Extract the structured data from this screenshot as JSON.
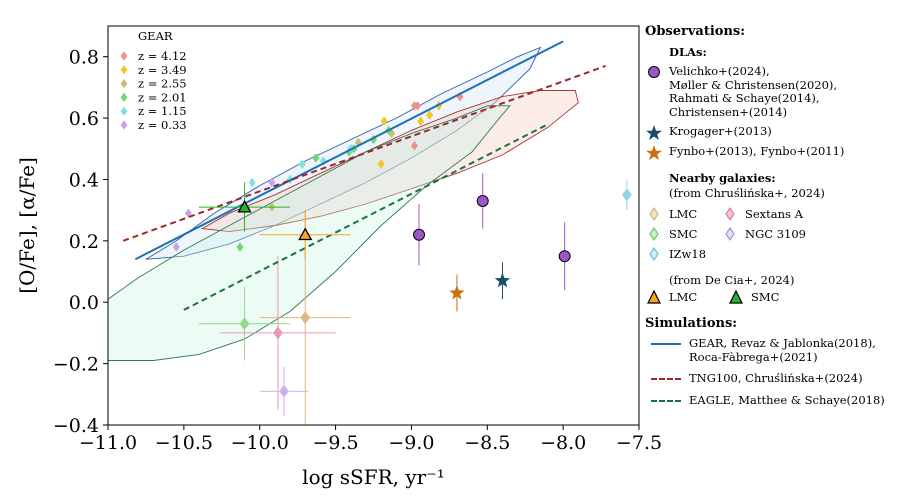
{
  "chart_data": {
    "type": "scatter",
    "xlabel": "log sSFR, yr⁻¹",
    "ylabel": "[O/Fe], [α/Fe]",
    "xlim": [
      -11.0,
      -7.5
    ],
    "ylim": [
      -0.4,
      0.9
    ],
    "xticks": [
      "−11.0",
      "−10.5",
      "−10.0",
      "−9.5",
      "−9.0",
      "−8.5",
      "−8.0",
      "−7.5"
    ],
    "xtick_values": [
      -11.0,
      -10.5,
      -10.0,
      -9.5,
      -9.0,
      -8.5,
      -8.0,
      -7.5
    ],
    "yticks": [
      "−0.4",
      "−0.2",
      "0.0",
      "0.2",
      "0.4",
      "0.6",
      "0.8"
    ],
    "ytick_values": [
      -0.4,
      -0.2,
      0.0,
      0.2,
      0.4,
      0.6,
      0.8
    ],
    "grid": false,
    "gear_legend": {
      "title": "GEAR",
      "entries": [
        {
          "label": "z = 4.12",
          "color": "#f08f8f"
        },
        {
          "label": "z = 3.49",
          "color": "#f2c52c"
        },
        {
          "label": "z = 2.55",
          "color": "#c8c070"
        },
        {
          "label": "z = 2.01",
          "color": "#6fd876"
        },
        {
          "label": "z = 1.15",
          "color": "#7fe0dc"
        },
        {
          "label": "z = 0.33",
          "color": "#c4a2ee"
        }
      ]
    },
    "gear_points": [
      {
        "z": "z = 4.12",
        "x": -8.98,
        "y": 0.64
      },
      {
        "z": "z = 4.12",
        "x": -8.96,
        "y": 0.64
      },
      {
        "z": "z = 4.12",
        "x": -8.68,
        "y": 0.67
      },
      {
        "z": "z = 4.12",
        "x": -8.98,
        "y": 0.51
      },
      {
        "z": "z = 3.49",
        "x": -8.82,
        "y": 0.64
      },
      {
        "z": "z = 3.49",
        "x": -8.88,
        "y": 0.61
      },
      {
        "z": "z = 3.49",
        "x": -9.18,
        "y": 0.59
      },
      {
        "z": "z = 3.49",
        "x": -8.94,
        "y": 0.59
      },
      {
        "z": "z = 3.49",
        "x": -9.2,
        "y": 0.45
      },
      {
        "z": "z = 2.55",
        "x": -9.35,
        "y": 0.52
      },
      {
        "z": "z = 2.55",
        "x": -9.13,
        "y": 0.55
      },
      {
        "z": "z = 2.55",
        "x": -9.92,
        "y": 0.31
      },
      {
        "z": "z = 2.01",
        "x": -9.25,
        "y": 0.53
      },
      {
        "z": "z = 2.01",
        "x": -9.41,
        "y": 0.49
      },
      {
        "z": "z = 2.01",
        "x": -9.38,
        "y": 0.5
      },
      {
        "z": "z = 2.01",
        "x": -9.63,
        "y": 0.47
      },
      {
        "z": "z = 2.01",
        "x": -9.15,
        "y": 0.56
      },
      {
        "z": "z = 2.01",
        "x": -10.13,
        "y": 0.18
      },
      {
        "z": "z = 1.15",
        "x": -9.58,
        "y": 0.46
      },
      {
        "z": "z = 1.15",
        "x": -9.72,
        "y": 0.45
      },
      {
        "z": "z = 1.15",
        "x": -9.8,
        "y": 0.4
      },
      {
        "z": "z = 1.15",
        "x": -10.05,
        "y": 0.39
      },
      {
        "z": "z = 1.15",
        "x": -9.4,
        "y": 0.5
      },
      {
        "z": "z = 0.33",
        "x": -10.47,
        "y": 0.29
      },
      {
        "z": "z = 0.33",
        "x": -9.92,
        "y": 0.39
      },
      {
        "z": "z = 0.33",
        "x": -10.55,
        "y": 0.18
      }
    ],
    "contours": [
      {
        "name": "GEAR envelope",
        "fill": "#cfe3f6",
        "stroke": "#2d5fa0",
        "fill_opacity": 0.35,
        "points": [
          [
            -10.75,
            0.14
          ],
          [
            -10.55,
            0.2
          ],
          [
            -10.3,
            0.29
          ],
          [
            -10.0,
            0.38
          ],
          [
            -9.7,
            0.46
          ],
          [
            -9.4,
            0.53
          ],
          [
            -9.1,
            0.6
          ],
          [
            -8.8,
            0.68
          ],
          [
            -8.5,
            0.75
          ],
          [
            -8.3,
            0.8
          ],
          [
            -8.15,
            0.83
          ],
          [
            -8.22,
            0.76
          ],
          [
            -8.45,
            0.65
          ],
          [
            -8.7,
            0.56
          ],
          [
            -9.0,
            0.47
          ],
          [
            -9.3,
            0.39
          ],
          [
            -9.6,
            0.32
          ],
          [
            -9.9,
            0.25
          ],
          [
            -10.2,
            0.19
          ],
          [
            -10.5,
            0.15
          ],
          [
            -10.75,
            0.14
          ]
        ]
      },
      {
        "name": "TNG100 envelope",
        "fill": "#f6c9bd",
        "stroke": "#a03a2e",
        "fill_opacity": 0.35,
        "points": [
          [
            -10.38,
            0.24
          ],
          [
            -10.2,
            0.29
          ],
          [
            -9.9,
            0.35
          ],
          [
            -9.6,
            0.42
          ],
          [
            -9.3,
            0.49
          ],
          [
            -9.0,
            0.56
          ],
          [
            -8.7,
            0.62
          ],
          [
            -8.4,
            0.67
          ],
          [
            -8.15,
            0.69
          ],
          [
            -7.92,
            0.69
          ],
          [
            -7.9,
            0.65
          ],
          [
            -8.1,
            0.57
          ],
          [
            -8.4,
            0.48
          ],
          [
            -8.7,
            0.42
          ],
          [
            -9.0,
            0.37
          ],
          [
            -9.3,
            0.32
          ],
          [
            -9.6,
            0.28
          ],
          [
            -9.9,
            0.25
          ],
          [
            -10.2,
            0.23
          ],
          [
            -10.38,
            0.24
          ]
        ]
      },
      {
        "name": "EAGLE envelope",
        "fill": "#ccf3e3",
        "stroke": "#2e7a55",
        "fill_opacity": 0.35,
        "points": [
          [
            -11.0,
            0.01
          ],
          [
            -10.8,
            0.08
          ],
          [
            -10.5,
            0.17
          ],
          [
            -10.2,
            0.25
          ],
          [
            -9.9,
            0.33
          ],
          [
            -9.6,
            0.41
          ],
          [
            -9.3,
            0.49
          ],
          [
            -9.0,
            0.55
          ],
          [
            -8.7,
            0.6
          ],
          [
            -8.5,
            0.64
          ],
          [
            -8.35,
            0.64
          ],
          [
            -8.42,
            0.6
          ],
          [
            -8.6,
            0.49
          ],
          [
            -8.9,
            0.38
          ],
          [
            -9.2,
            0.25
          ],
          [
            -9.5,
            0.1
          ],
          [
            -9.8,
            -0.03
          ],
          [
            -10.1,
            -0.12
          ],
          [
            -10.4,
            -0.17
          ],
          [
            -10.7,
            -0.19
          ],
          [
            -11.0,
            -0.19
          ]
        ]
      }
    ],
    "sim_lines": [
      {
        "name": "GEAR",
        "color": "#1f6fb4",
        "dash": "solid",
        "x": [
          -10.82,
          -8.0
        ],
        "y": [
          0.14,
          0.85
        ]
      },
      {
        "name": "TNG100",
        "color": "#a02828",
        "dash": "dashed",
        "x": [
          -10.9,
          -7.72
        ],
        "y": [
          0.2,
          0.77
        ]
      },
      {
        "name": "EAGLE",
        "color": "#1c7049",
        "dash": "dashed",
        "x": [
          -10.5,
          -8.1
        ],
        "y": [
          -0.025,
          0.58
        ]
      }
    ],
    "dla_points": [
      {
        "x": -8.95,
        "y": 0.22,
        "yerr": 0.1,
        "color": "#9a57c5"
      },
      {
        "x": -8.53,
        "y": 0.33,
        "yerr": 0.09,
        "color": "#9a57c5"
      },
      {
        "x": -7.99,
        "y": 0.15,
        "yerr": 0.11,
        "color": "#9a57c5"
      }
    ],
    "krogager_points": [
      {
        "x": -8.4,
        "y": 0.07,
        "yerr": 0.06,
        "color": "#174c6b"
      }
    ],
    "fynbo_points": [
      {
        "x": -8.7,
        "y": 0.03,
        "yerr": 0.06,
        "color": "#cc6e12"
      }
    ],
    "nearby_points": [
      {
        "name": "LMC",
        "x": -9.7,
        "y": -0.05,
        "xerr": 0.3,
        "yerr": 0.35,
        "color": "#dbb886"
      },
      {
        "name": "SMC",
        "x": -10.1,
        "y": -0.07,
        "xerr": 0.3,
        "yerr": 0.12,
        "color": "#8fd88f"
      },
      {
        "name": "Sextans A",
        "x": -9.88,
        "y": -0.1,
        "xerr": 0.38,
        "yerr": 0.25,
        "color": "#e89ab2"
      },
      {
        "name": "NGC 3109",
        "x": -9.84,
        "y": -0.29,
        "xerr": 0.16,
        "yerr": 0.08,
        "color": "#c9b3ea"
      },
      {
        "name": "IZw18",
        "x": -7.58,
        "y": 0.35,
        "xerr": 0.0,
        "yerr": 0.05,
        "color": "#92d4e8"
      }
    ],
    "decia_points": [
      {
        "name": "LMC",
        "x": -9.7,
        "y": 0.22,
        "xerr": 0.3,
        "yerr": 0.08,
        "color": "#f5a623"
      },
      {
        "name": "SMC",
        "x": -10.1,
        "y": 0.31,
        "xerr": 0.3,
        "yerr": 0.08,
        "color": "#22b822"
      }
    ]
  },
  "legend": {
    "observations_title": "Observations:",
    "dlas_title": "DLAs:",
    "dla_label": "Velichko+(2024),\nMøller & Christensen(2020),\nRahmati & Schaye(2014),\nChristensen+(2014)",
    "krogager_label": "Krogager+(2013)",
    "fynbo_label": "Fynbo+(2013), Fynbo+(2011)",
    "nearby_title": "Nearby galaxies:",
    "nearby_note": "(from Chruślińska+, 2024)",
    "nearby_items": [
      "LMC",
      "Sextans A",
      "SMC",
      "NGC 3109",
      "IZw18"
    ],
    "decia_note": "(from De Cia+, 2024)",
    "decia_items": [
      "LMC",
      "SMC"
    ],
    "simulations_title": "Simulations:",
    "sim_labels": [
      "GEAR, Revaz & Jablonka(2018),\nRoca-Fàbrega+(2021)",
      "TNG100, Chruślińska+(2024)",
      "EAGLE, Matthee & Schaye(2018)"
    ],
    "sim_colors": [
      "#1f6fb4",
      "#a02828",
      "#1c7049"
    ],
    "sim_styles": [
      "solid",
      "dashed",
      "dashed"
    ]
  }
}
